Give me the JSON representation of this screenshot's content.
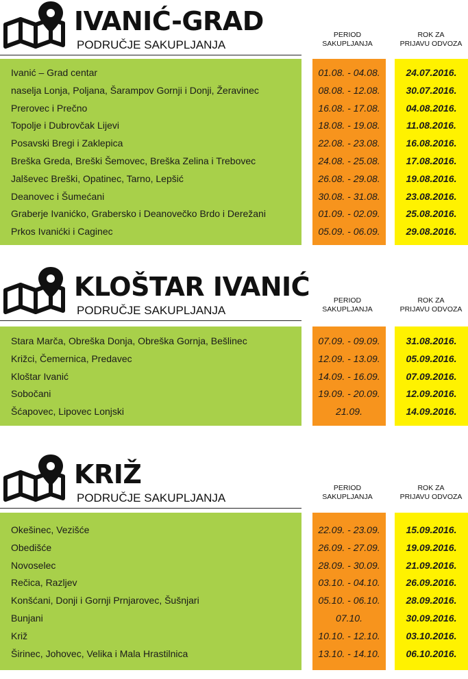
{
  "sections": [
    {
      "title": "IVANIĆ-GRAD",
      "subtitle": "PODRUČJE SAKUPLJANJA",
      "period_header": [
        "PERIOD",
        "SAKUPLJANJA"
      ],
      "deadline_header": [
        "ROK ZA",
        "PRIJAVU ODVOZA"
      ],
      "rows": [
        {
          "place": "Ivanić – Grad centar",
          "period": "01.08. - 04.08.",
          "deadline": "24.07.2016."
        },
        {
          "place": "naselja Lonja, Poljana, Šarampov Gornji i Donji, Žeravinec",
          "period": "08.08. - 12.08.",
          "deadline": "30.07.2016."
        },
        {
          "place": "Prerovec i Prečno",
          "period": "16.08. - 17.08.",
          "deadline": "04.08.2016."
        },
        {
          "place": "Topolje i Dubrovčak Lijevi",
          "period": "18.08. - 19.08.",
          "deadline": "11.08.2016."
        },
        {
          "place": "Posavski Bregi i Zaklepica",
          "period": "22.08. - 23.08.",
          "deadline": "16.08.2016."
        },
        {
          "place": "Breška Greda, Breški Šemovec, Breška Zelina i Trebovec",
          "period": "24.08. - 25.08.",
          "deadline": "17.08.2016."
        },
        {
          "place": "Jalševec Breški, Opatinec, Tarno, Lepšić",
          "period": "26.08. - 29.08.",
          "deadline": "19.08.2016."
        },
        {
          "place": "Deanovec i Šumećani",
          "period": "30.08. - 31.08.",
          "deadline": "23.08.2016."
        },
        {
          "place": "Graberje Ivanićko, Grabersko i Deanovečko Brdo i Derežani",
          "period": "01.09. - 02.09.",
          "deadline": "25.08.2016."
        },
        {
          "place": "Prkos Ivanićki i Caginec",
          "period": "05.09. - 06.09.",
          "deadline": "29.08.2016."
        }
      ]
    },
    {
      "title": "KLOŠTAR IVANIĆ",
      "subtitle": "PODRUČJE SAKUPLJANJA",
      "period_header": [
        "PERIOD",
        "SAKUPLJANJA"
      ],
      "deadline_header": [
        "ROK ZA",
        "PRIJAVU ODVOZA"
      ],
      "rows": [
        {
          "place": "Stara Marča, Obreška Donja, Obreška Gornja, Bešlinec",
          "period": "07.09. - 09.09.",
          "deadline": "31.08.2016."
        },
        {
          "place": "Križci, Čemernica, Predavec",
          "period": "12.09. - 13.09.",
          "deadline": "05.09.2016."
        },
        {
          "place": "Kloštar Ivanić",
          "period": "14.09. - 16.09.",
          "deadline": "07.09.2016."
        },
        {
          "place": "Sobočani",
          "period": "19.09. - 20.09.",
          "deadline": "12.09.2016."
        },
        {
          "place": "Šćapovec, Lipovec Lonjski",
          "period": "21.09.",
          "deadline": "14.09.2016."
        }
      ]
    },
    {
      "title": "KRIŽ",
      "subtitle": "PODRUČJE SAKUPLJANJA",
      "period_header": [
        "PERIOD",
        "SAKUPLJANJA"
      ],
      "deadline_header": [
        "ROK ZA",
        "PRIJAVU ODVOZA"
      ],
      "rows": [
        {
          "place": "Okešinec, Vezišće",
          "period": "22.09. - 23.09.",
          "deadline": "15.09.2016."
        },
        {
          "place": "Obedišće",
          "period": "26.09. - 27.09.",
          "deadline": "19.09.2016."
        },
        {
          "place": "Novoselec",
          "period": "28.09. - 30.09.",
          "deadline": "21.09.2016."
        },
        {
          "place": "Rečica, Razljev",
          "period": "03.10. - 04.10.",
          "deadline": "26.09.2016."
        },
        {
          "place": "Konšćani, Donji i Gornji Prnjarovec, Šušnjari",
          "period": "05.10. - 06.10.",
          "deadline": "28.09.2016."
        },
        {
          "place": "Bunjani",
          "period": "07.10.",
          "deadline": "30.09.2016."
        },
        {
          "place": "Križ",
          "period": "10.10. - 12.10.",
          "deadline": "03.10.2016."
        },
        {
          "place": "Širinec, Johovec, Velika i Mala Hrastilnica",
          "period": "13.10. - 14.10.",
          "deadline": "06.10.2016."
        }
      ]
    }
  ],
  "colors": {
    "place_column": "#a8d04a",
    "period_column": "#f7941d",
    "deadline_column": "#fff200",
    "text": "#1a1a1a"
  },
  "icons": [
    "map-pin-icon"
  ]
}
